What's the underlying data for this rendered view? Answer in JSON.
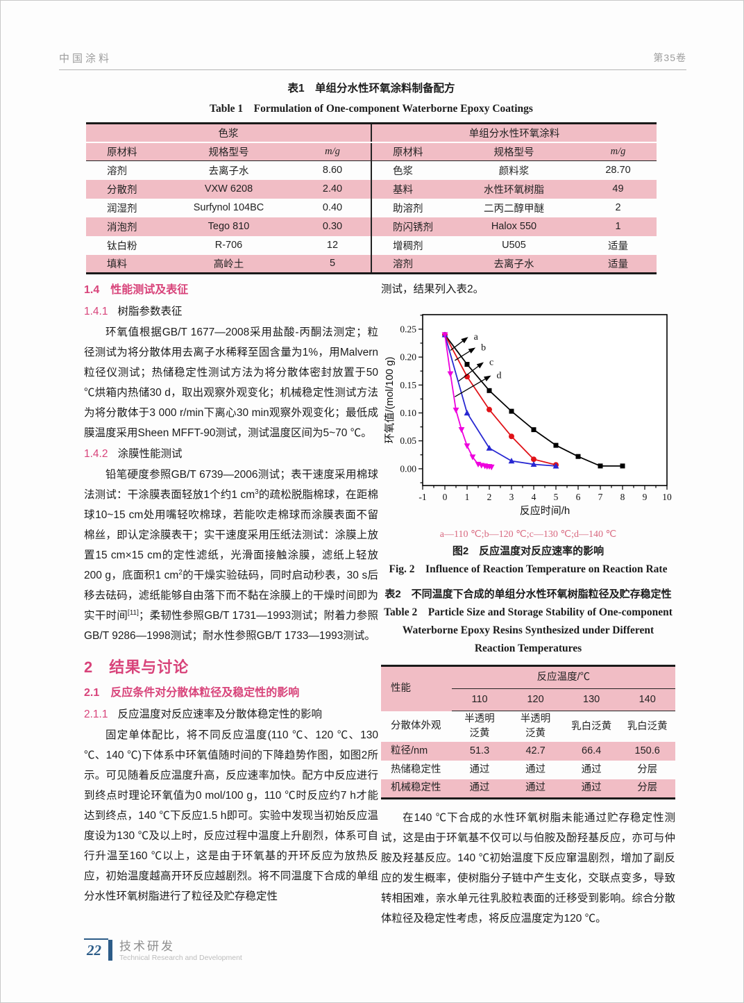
{
  "header": {
    "journal": "中国涂料",
    "volume": "第35卷"
  },
  "table1": {
    "title_cn": "表1　单组分水性环氧涂料制备配方",
    "title_en": "Table 1　Formulation of One-component Waterborne Epoxy Coatings",
    "group_left": "色浆",
    "group_right": "单组分水性环氧涂料",
    "col_material": "原材料",
    "col_spec": "规格型号",
    "col_mass": "m/g",
    "left_rows": [
      [
        "溶剂",
        "去离子水",
        "8.60"
      ],
      [
        "分散剂",
        "VXW 6208",
        "2.40"
      ],
      [
        "润湿剂",
        "Surfynol 104BC",
        "0.40"
      ],
      [
        "消泡剂",
        "Tego 810",
        "0.30"
      ],
      [
        "钛白粉",
        "R-706",
        "12"
      ],
      [
        "填料",
        "高岭土",
        "5"
      ]
    ],
    "right_rows": [
      [
        "色浆",
        "颜料浆",
        "28.70"
      ],
      [
        "基料",
        "水性环氧树脂",
        "49"
      ],
      [
        "助溶剂",
        "二丙二醇甲醚",
        "2"
      ],
      [
        "防闪锈剂",
        "Halox 550",
        "1"
      ],
      [
        "增稠剂",
        "U505",
        "适量"
      ],
      [
        "溶剂",
        "去离子水",
        "适量"
      ]
    ]
  },
  "sections": {
    "s14": {
      "heading": "1.4　性能测试及表征"
    },
    "s141": {
      "num": "1.4.1",
      "title": "树脂参数表征",
      "paragraph": "环氧值根据GB/T 1677—2008采用盐酸-丙酮法测定；粒径测试为将分散体用去离子水稀释至固含量为1%，用Malvern粒径仪测试；热储稳定性测试方法为将分散体密封放置于50 ℃烘箱内热储30 d，取出观察外观变化；机械稳定性测试方法为将分散体于3 000 r/min下离心30 min观察外观变化；最低成膜温度采用Sheen MFFT-90测试，测试温度区间为5~70 ℃。"
    },
    "s142": {
      "num": "1.4.2",
      "title": "涂膜性能测试",
      "paragraph_rich": [
        {
          "t": "铅笔硬度参照GB/T 6739—2006测试；表干速度采用棉球法测试：干涂膜表面轻放1个约1 cm"
        },
        {
          "t": "3",
          "sup": true
        },
        {
          "t": "的疏松脱脂棉球，在距棉球10~15 cm处用嘴轻吹棉球，若能吹走棉球而涂膜表面不留棉丝，即认定涂膜表干；实干速度采用压纸法测试：涂膜上放置15 cm×15 cm的定性滤纸，光滑面接触涂膜，滤纸上轻放200 g，底面积1 cm"
        },
        {
          "t": "2",
          "sup": true
        },
        {
          "t": "的干燥实验砝码，同时启动秒表，30 s后移去砝码，滤纸能够自由落下而不黏在涂膜上的干燥时间即为实干时间"
        },
        {
          "t": "[11]",
          "sup": true
        },
        {
          "t": "；柔韧性参照GB/T 1731—1993测试；附着力参照GB/T 9286—1998测试；耐水性参照GB/T 1733—1993测试。"
        }
      ]
    },
    "s2": {
      "heading": "2　结果与讨论"
    },
    "s21": {
      "heading": "2.1　反应条件对分散体粒径及稳定性的影响"
    },
    "s211": {
      "num": "2.1.1",
      "title": "反应温度对反应速率及分散体稳定性的影响",
      "paragraph": "固定单体配比，将不同反应温度(110 ℃、120 ℃、130 ℃、140 ℃)下体系中环氧值随时间的下降趋势作图，如图2所示。可见随着反应温度升高，反应速率加快。配方中反应进行到终点时理论环氧值为0 mol/100 g，110 ℃时反应约7 h才能达到终点，140 ℃下反应1.5 h即可。实验中发现当初始反应温度设为130 ℃及以上时，反应过程中温度上升剧烈，体系可自行升温至160 ℃以上，这是由于环氧基的开环反应为放热反应，初始温度越高开环反应越剧烈。将不同温度下合成的单组分水性环氧树脂进行了粒径及贮存稳定性"
    },
    "right_top": "测试，结果列入表2。",
    "discussion": "在140 ℃下合成的水性环氧树脂未能通过贮存稳定性测试，这是由于环氧基不仅可以与伯胺及酚羟基反应，亦可与仲胺及羟基反应。140 ℃初始温度下反应窜温剧烈，增加了副反应的发生概率，使树脂分子链中产生支化，交联点变多，导致转相困难，亲水单元往乳胶粒表面的迁移受到影响。综合分散体粒径及稳定性考虑，将反应温度定为120 ℃。"
  },
  "figure2": {
    "series_caption": "a—110 ℃;b—120 ℃;c—130 ℃;d—140 ℃",
    "caption_cn": "图2　反应温度对反应速率的影响",
    "caption_en": "Fig. 2　Influence of Reaction Temperature on Reaction Rate"
  },
  "chart_data": {
    "type": "line",
    "title": "",
    "xlabel": "反应时间/h",
    "ylabel": "环氧值/(mol/100 g)",
    "xlim": [
      -1,
      10
    ],
    "ylim": [
      -0.03,
      0.276
    ],
    "xticks": [
      -1,
      0,
      1,
      2,
      3,
      4,
      5,
      6,
      7,
      8,
      9,
      10
    ],
    "yticks": [
      0.0,
      0.05,
      0.1,
      0.15,
      0.2,
      0.25
    ],
    "grid": false,
    "legend_position": "none",
    "series": [
      {
        "name": "a (110 ℃)",
        "color": "#000000",
        "marker": "square",
        "x": [
          0,
          1,
          2,
          3,
          4,
          5,
          6,
          7,
          8
        ],
        "y": [
          0.24,
          0.187,
          0.14,
          0.103,
          0.07,
          0.042,
          0.022,
          0.005,
          0.005
        ]
      },
      {
        "name": "b (120 ℃)",
        "color": "#e01218",
        "marker": "circle",
        "x": [
          0,
          1,
          2,
          3,
          4,
          5
        ],
        "y": [
          0.24,
          0.165,
          0.106,
          0.058,
          0.017,
          0.007
        ]
      },
      {
        "name": "c (130 ℃)",
        "color": "#2828d2",
        "marker": "triangle-up",
        "x": [
          0,
          1,
          2,
          3,
          4,
          5
        ],
        "y": [
          0.24,
          0.1,
          0.037,
          0.014,
          0.008,
          0.005
        ]
      },
      {
        "name": "d (140 ℃)",
        "color": "#ee00dd",
        "marker": "triangle-down",
        "x": [
          0,
          0.25,
          0.5,
          0.75,
          1.0,
          1.25,
          1.5,
          1.65,
          1.8,
          1.9,
          2.0,
          2.1
        ],
        "y": [
          0.24,
          0.17,
          0.105,
          0.07,
          0.041,
          0.021,
          0.008,
          0.006,
          0.005,
          0.004,
          0.004,
          0.003
        ]
      }
    ],
    "annotations": [
      {
        "label": "a",
        "x1": 0.25,
        "y1": 0.212,
        "x2": 1.05,
        "y2": 0.236
      },
      {
        "label": "b",
        "x1": 0.45,
        "y1": 0.194,
        "x2": 1.38,
        "y2": 0.217
      },
      {
        "label": "c",
        "x1": 0.62,
        "y1": 0.157,
        "x2": 1.75,
        "y2": 0.191
      },
      {
        "label": "d",
        "x1": 0.45,
        "y1": 0.129,
        "x2": 2.08,
        "y2": 0.167
      }
    ]
  },
  "table2": {
    "title_cn": "表2　不同温度下合成的单组分水性环氧树脂粒径及贮存稳定性",
    "title_en": "Table 2　Particle Size and Storage Stability of One-component Waterborne Epoxy Resins Synthesized under Different Reaction Temperatures",
    "header_property": "性能",
    "header_temp": "反应温度/℃",
    "temps": [
      "110",
      "120",
      "130",
      "140"
    ],
    "rows": [
      [
        "分散体外观",
        "半透明\n泛黄",
        "半透明\n泛黄",
        "乳白泛黄",
        "乳白泛黄"
      ],
      [
        "粒径/nm",
        "51.3",
        "42.7",
        "66.4",
        "150.6"
      ],
      [
        "热储稳定性",
        "通过",
        "通过",
        "通过",
        "分层"
      ],
      [
        "机械稳定性",
        "通过",
        "通过",
        "通过",
        "分层"
      ]
    ]
  },
  "footer": {
    "page_number": "22",
    "section_cn": "技术研发",
    "section_en": "Technical Research and Development"
  },
  "colors": {
    "accent_pink": "#d8437a",
    "table_pink": "#f1bdc5",
    "caption_pink": "#d8687f",
    "footer_blue": "#2c5c88"
  }
}
